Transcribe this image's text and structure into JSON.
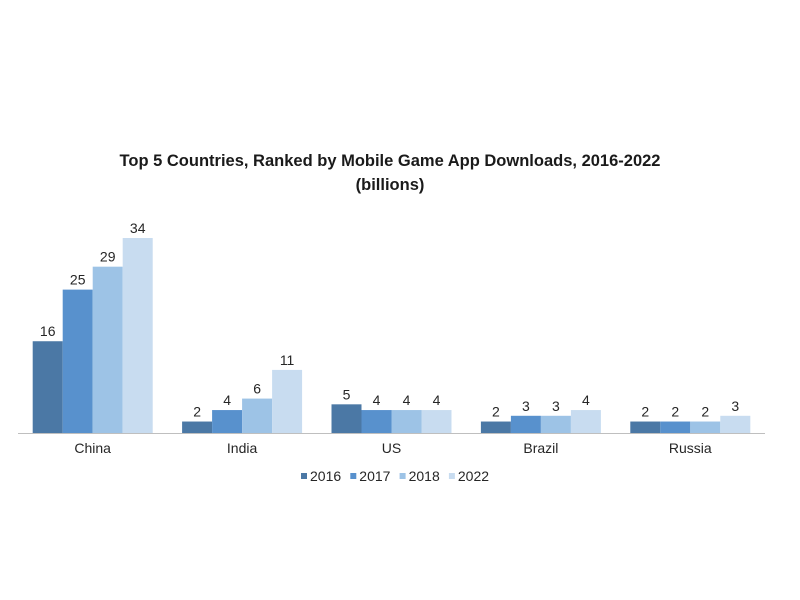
{
  "chart_data": {
    "type": "bar",
    "title": "Top 5 Countries, Ranked by Mobile Game App Downloads, 2016-2022",
    "subtitle": "(billions)",
    "categories": [
      "China",
      "India",
      "US",
      "Brazil",
      "Russia"
    ],
    "series": [
      {
        "name": "2016",
        "values": [
          16,
          2,
          5,
          2,
          2
        ],
        "color": "#4b78a5"
      },
      {
        "name": "2017",
        "values": [
          25,
          4,
          4,
          3,
          2
        ],
        "color": "#5891cd"
      },
      {
        "name": "2018",
        "values": [
          29,
          6,
          4,
          3,
          2
        ],
        "color": "#9dc3e6"
      },
      {
        "name": "2022",
        "values": [
          34,
          11,
          4,
          4,
          3
        ],
        "color": "#c8dcf0"
      }
    ],
    "legend": "bottom",
    "grid": false
  }
}
